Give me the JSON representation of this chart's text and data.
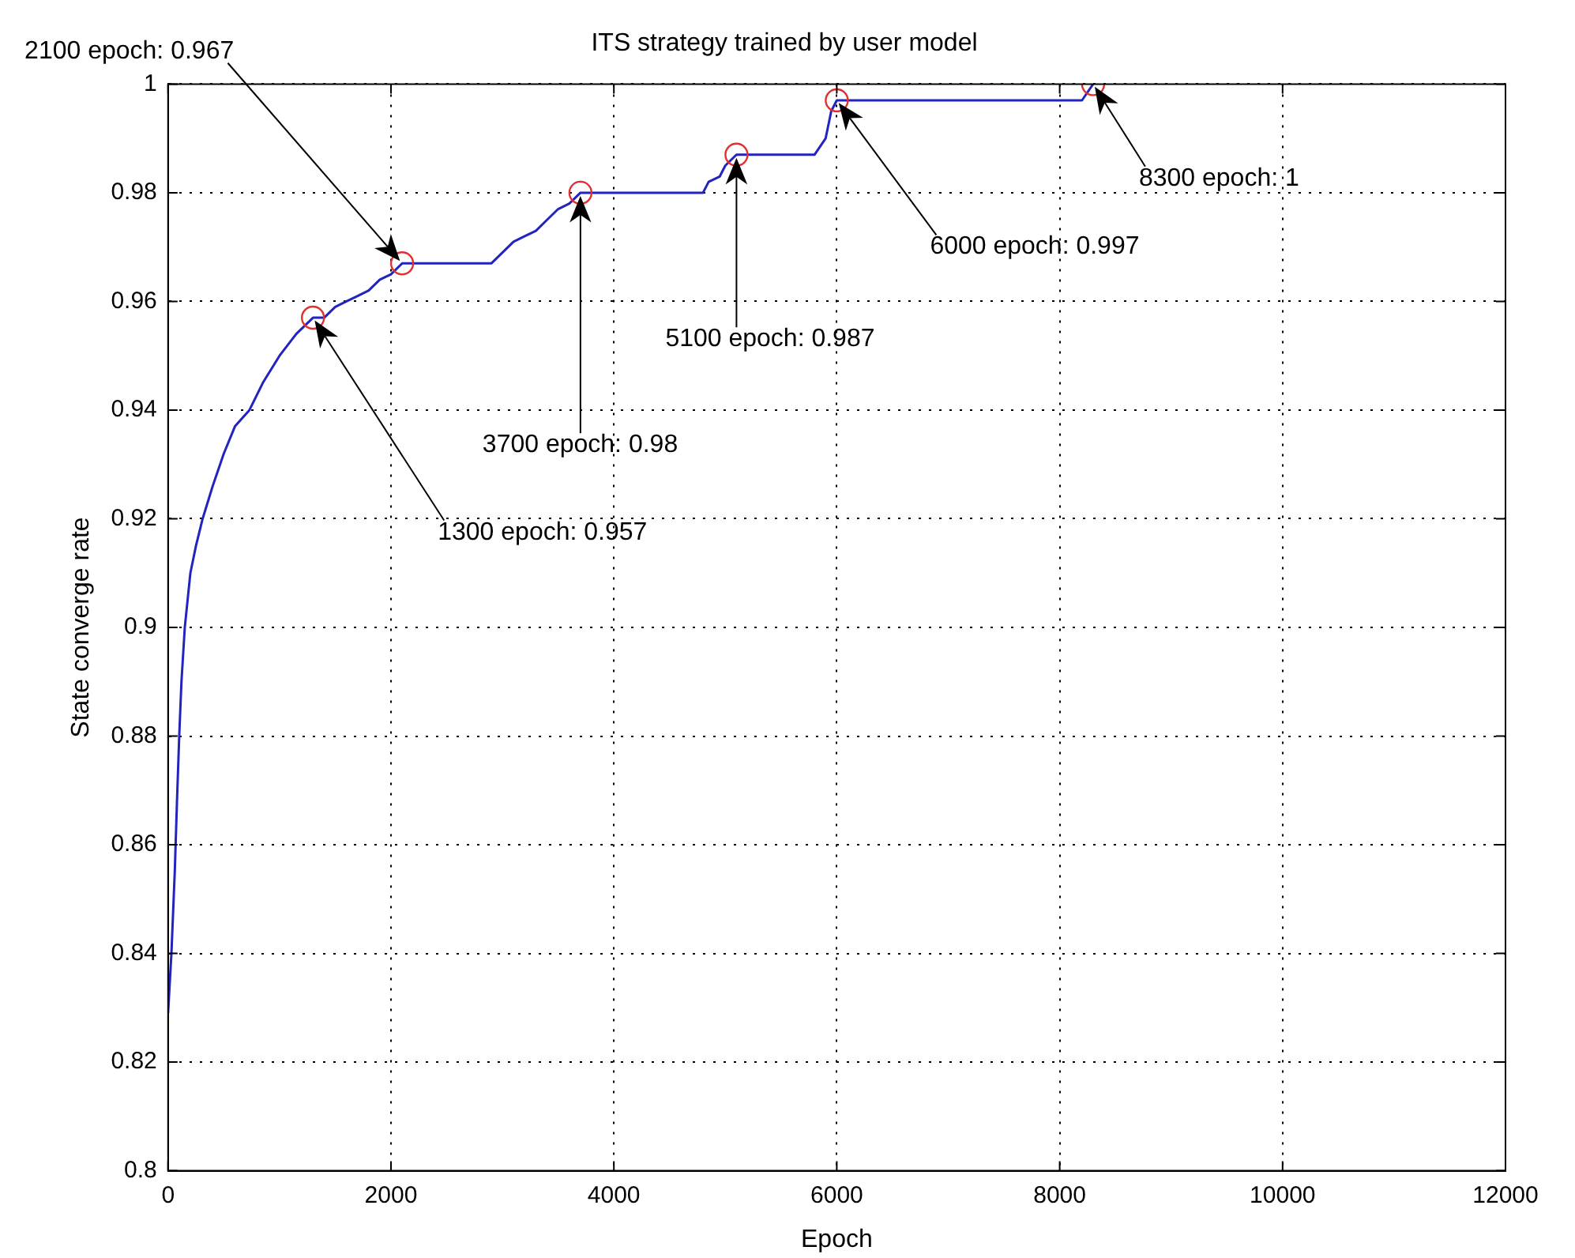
{
  "chart_data": {
    "type": "line",
    "title": "ITS strategy trained by user model",
    "xlabel": "Epoch",
    "ylabel": "State converge rate",
    "xlim": [
      0,
      12000
    ],
    "xticks": [
      0,
      2000,
      4000,
      6000,
      8000,
      10000,
      12000
    ],
    "ylim": [
      0.8,
      1
    ],
    "yticks": [
      0.8,
      0.82,
      0.84,
      0.86,
      0.88,
      0.9,
      0.92,
      0.94,
      0.96,
      0.98,
      1
    ],
    "grid": true,
    "line_style": "solid",
    "series": [
      {
        "type": "line",
        "color": "#2323c0",
        "marker": "none",
        "x": [
          0,
          30,
          60,
          80,
          100,
          120,
          150,
          200,
          250,
          310,
          400,
          500,
          600,
          730,
          850,
          1000,
          1150,
          1300,
          1400,
          1500,
          1600,
          1700,
          1800,
          1900,
          2000,
          2100,
          2200,
          2900,
          3000,
          3100,
          3200,
          3300,
          3400,
          3500,
          3600,
          3700,
          4000,
          4800,
          4850,
          4950,
          5000,
          5100,
          5300,
          5800,
          5900,
          5950,
          6000,
          8200,
          8300
        ],
        "values": [
          0.829,
          0.84,
          0.855,
          0.868,
          0.88,
          0.89,
          0.9,
          0.91,
          0.915,
          0.92,
          0.926,
          0.932,
          0.937,
          0.94,
          0.945,
          0.95,
          0.954,
          0.957,
          0.957,
          0.959,
          0.96,
          0.961,
          0.962,
          0.964,
          0.965,
          0.967,
          0.967,
          0.967,
          0.969,
          0.971,
          0.972,
          0.973,
          0.975,
          0.977,
          0.978,
          0.98,
          0.98,
          0.98,
          0.982,
          0.983,
          0.985,
          0.987,
          0.987,
          0.987,
          0.99,
          0.995,
          0.997,
          0.997,
          1
        ]
      },
      {
        "type": "scatter",
        "color": "#e03030",
        "marker": "circle",
        "x": [
          1300,
          2100,
          3700,
          5100,
          6000,
          8300
        ],
        "values": [
          0.957,
          0.967,
          0.98,
          0.987,
          0.997,
          1
        ]
      }
    ],
    "annotations": [
      "1300 epoch: 0.957",
      "2100 epoch: 0.967",
      "3700 epoch: 0.98",
      "5100 epoch: 0.987",
      "6000 epoch: 0.997",
      "8300 epoch: 1"
    ]
  }
}
